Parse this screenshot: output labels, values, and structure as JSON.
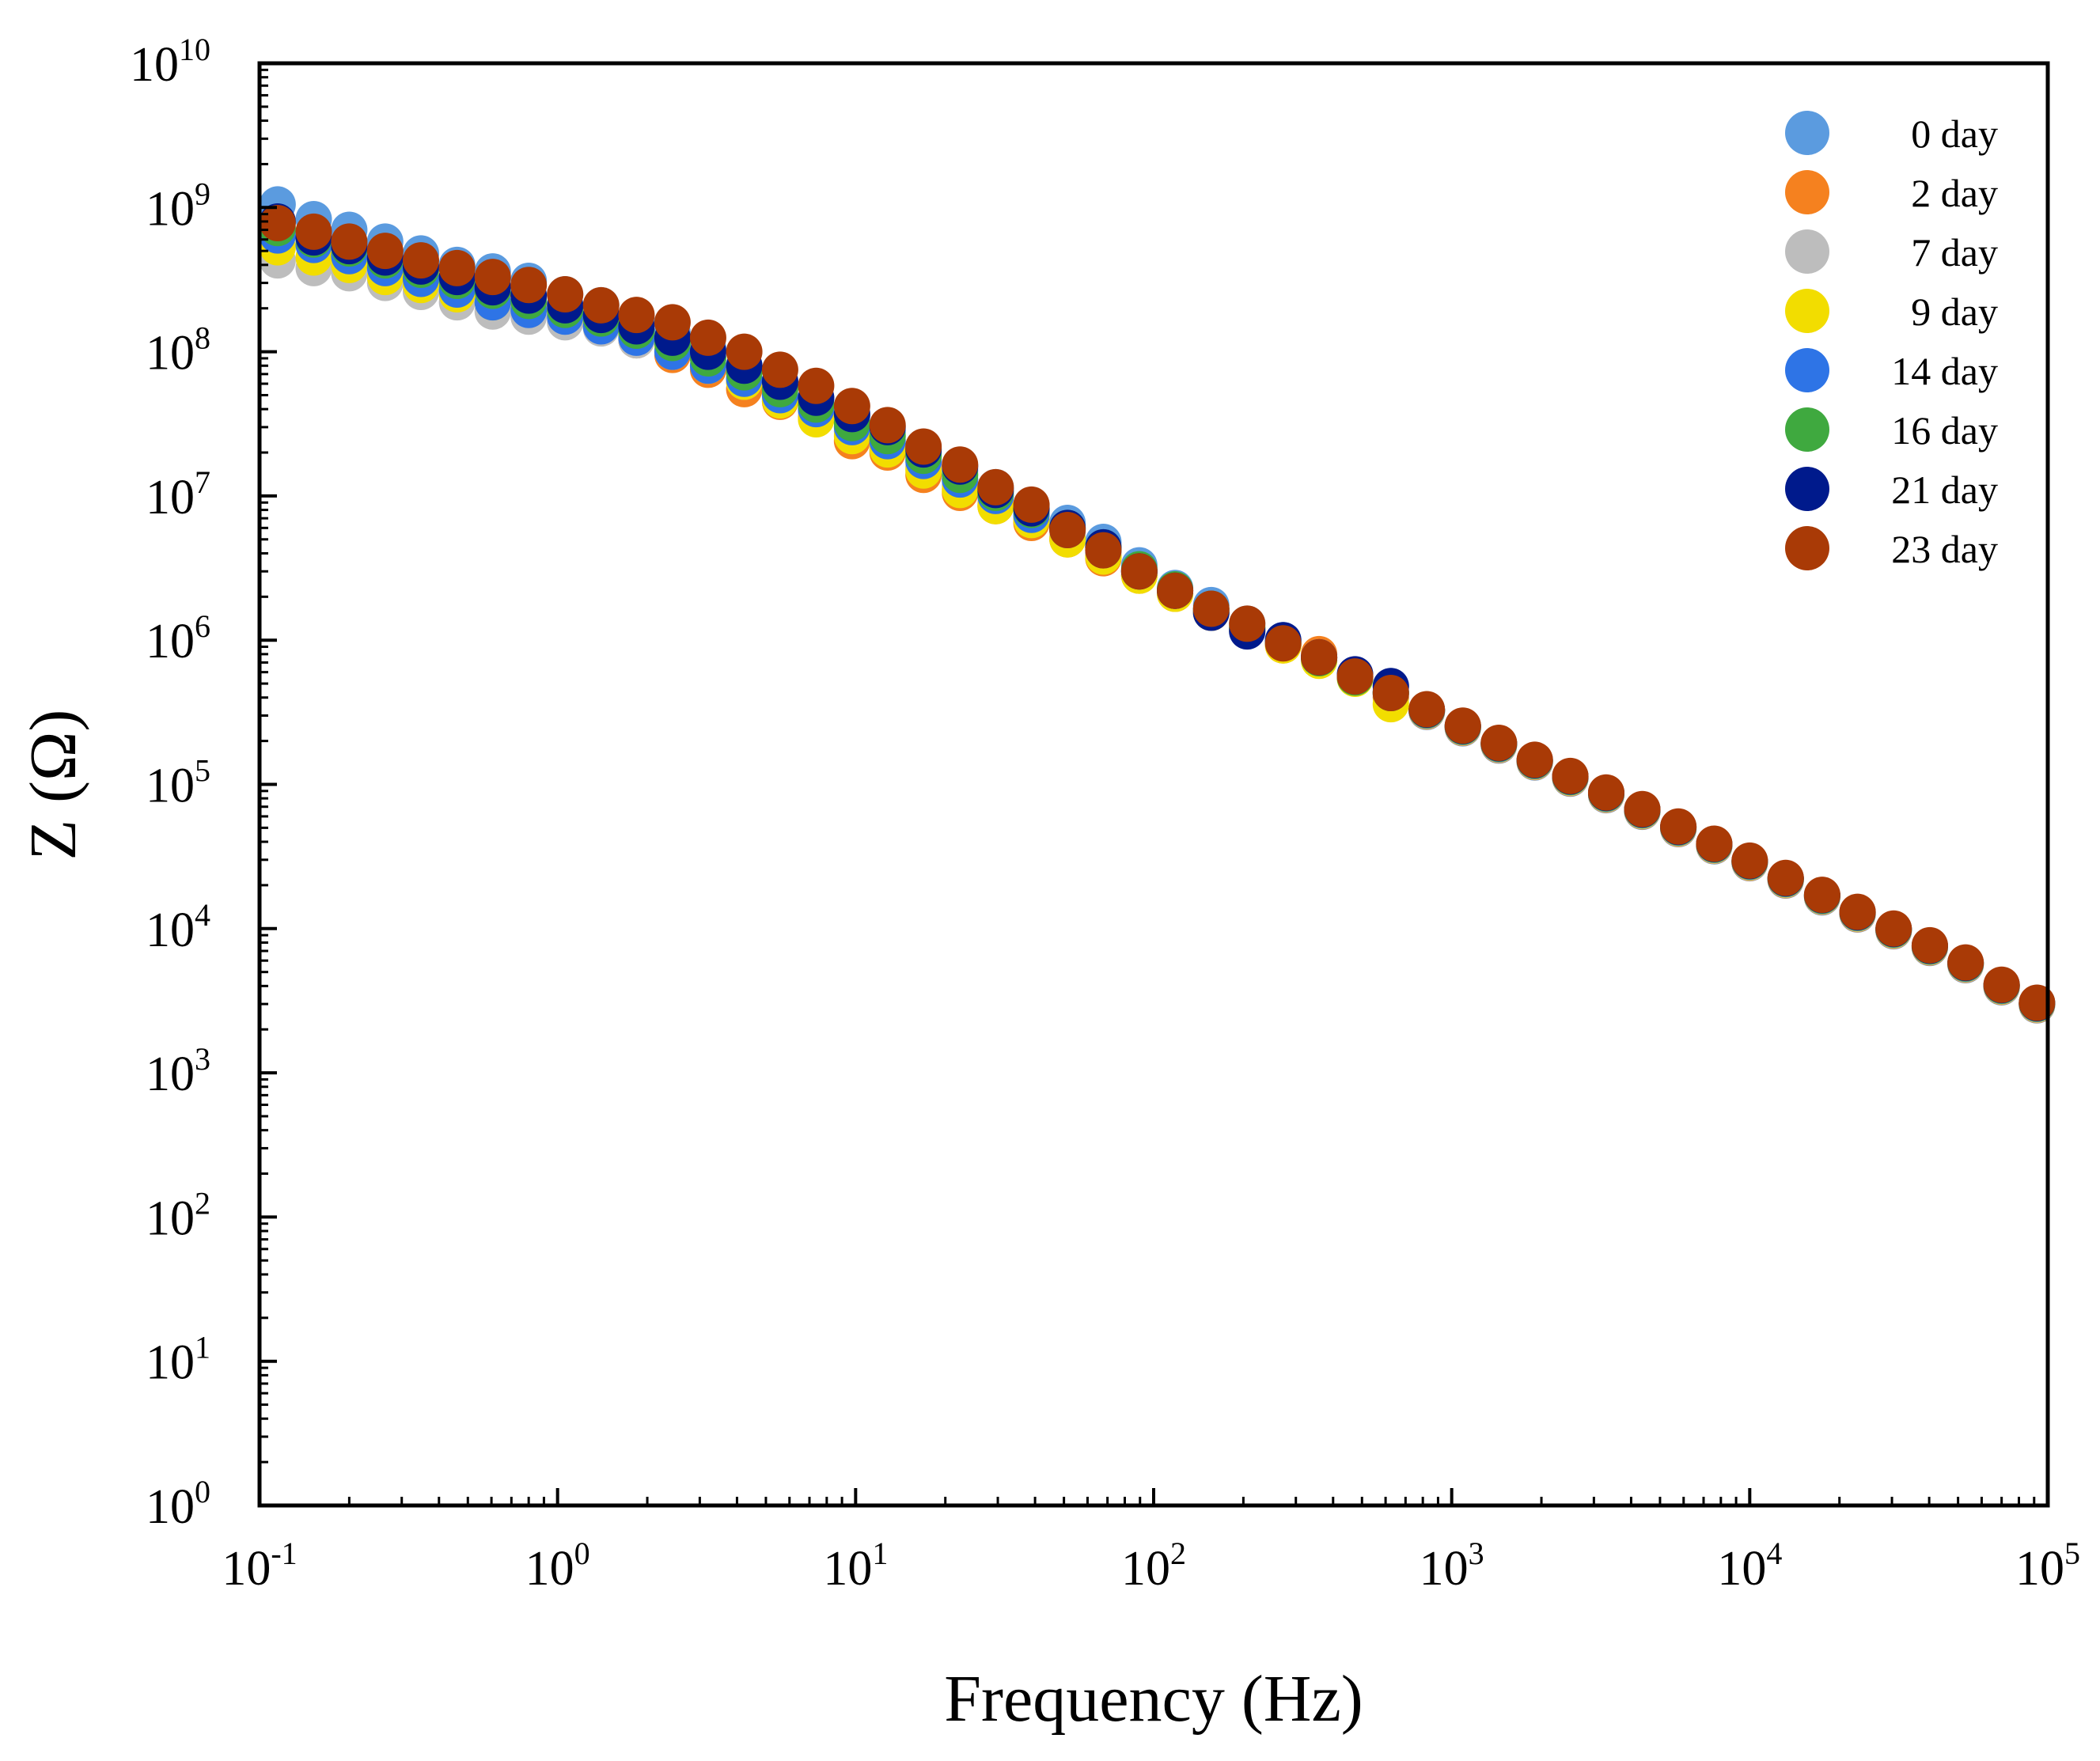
{
  "chart_data": {
    "type": "scatter",
    "title": "",
    "xlabel": "Frequency (Hz)",
    "ylabel": "Z (Ω)",
    "x_scale": "log",
    "y_scale": "log",
    "xlim": [
      0.1,
      100000
    ],
    "ylim": [
      1,
      10000000000
    ],
    "x_tick_exponents": [
      "-1",
      "0",
      "1",
      "2",
      "3",
      "4",
      "5"
    ],
    "y_tick_exponents": [
      "0",
      "1",
      "2",
      "3",
      "4",
      "5",
      "6",
      "7",
      "8",
      "9",
      "10"
    ],
    "tick_base": "10",
    "grid": false,
    "legend_position": "top-right",
    "x": [
      0.115,
      0.152,
      0.2,
      0.264,
      0.348,
      0.46,
      0.606,
      0.8,
      1.06,
      1.4,
      1.84,
      2.43,
      3.2,
      4.23,
      5.58,
      7.37,
      9.73,
      12.8,
      16.9,
      22.4,
      29.5,
      38.9,
      51.4,
      67.8,
      89.5,
      118,
      156,
      206,
      272,
      359,
      474,
      625
    ],
    "x_hf": [
      825,
      1090,
      1440,
      1900,
      2500,
      3300,
      4360,
      5760,
      7600,
      10000,
      13200,
      17500,
      23000,
      30400,
      40200,
      53000,
      70000,
      92000
    ],
    "y_hf": [
      325000,
      250000,
      190000,
      145000,
      112000,
      86000,
      66000,
      50000,
      38000,
      29000,
      22000,
      16800,
      12800,
      9800,
      7500,
      5700,
      4000,
      3000
    ],
    "series": [
      {
        "name": "0 day",
        "color": "#5b9bdf",
        "values": [
          1050000000,
          830000000,
          700000000,
          580000000,
          480000000,
          400000000,
          360000000,
          310000000,
          250000000,
          210000000,
          170000000,
          135000000,
          105000000,
          80000000,
          62000000,
          47000000,
          36000000,
          28000000,
          20000000,
          15000000,
          11500000,
          8500000,
          6500000,
          4800000,
          3300000,
          2300000,
          1750000,
          1300000,
          1000000,
          760000,
          570000,
          440000
        ]
      },
      {
        "name": "2 day",
        "color": "#f5811f",
        "values": [
          700000000,
          580000000,
          480000000,
          400000000,
          340000000,
          290000000,
          250000000,
          220000000,
          190000000,
          150000000,
          120000000,
          95000000,
          75000000,
          55000000,
          45000000,
          35000000,
          24000000,
          20000000,
          14000000,
          10500000,
          8500000,
          6500000,
          5000000,
          3700000,
          2800000,
          2100000,
          1550000,
          1180000,
          920000,
          800000,
          560000,
          400000
        ]
      },
      {
        "name": "7 day",
        "color": "#bdbdbd",
        "values": [
          430000000,
          380000000,
          350000000,
          300000000,
          260000000,
          220000000,
          190000000,
          175000000,
          160000000,
          145000000,
          120000000,
          100000000,
          80000000,
          62000000,
          48000000,
          38000000,
          28000000,
          22000000,
          16000000,
          12000000,
          9000000,
          7000000,
          5200000,
          4000000,
          2900000,
          2200000,
          1600000,
          1200000,
          950000,
          750000,
          560000,
          480000
        ]
      },
      {
        "name": "9 day",
        "color": "#f2dd00",
        "values": [
          530000000,
          450000000,
          400000000,
          330000000,
          290000000,
          250000000,
          220000000,
          200000000,
          180000000,
          160000000,
          130000000,
          105000000,
          80000000,
          62000000,
          46000000,
          34000000,
          26000000,
          21000000,
          15000000,
          11000000,
          8500000,
          6800000,
          5000000,
          3800000,
          2800000,
          2100000,
          1550000,
          1180000,
          920000,
          720000,
          540000,
          360000
        ]
      },
      {
        "name": "14 day",
        "color": "#2e74e6",
        "values": [
          640000000,
          550000000,
          460000000,
          380000000,
          320000000,
          270000000,
          220000000,
          195000000,
          175000000,
          150000000,
          125000000,
          100000000,
          80000000,
          65000000,
          50000000,
          40000000,
          30000000,
          24000000,
          17500000,
          13000000,
          10000000,
          7400000,
          5800000,
          4200000,
          3000000,
          2200000,
          1650000,
          1200000,
          980000,
          760000,
          560000,
          430000
        ]
      },
      {
        "name": "16 day",
        "color": "#3fa93f",
        "values": [
          720000000,
          600000000,
          520000000,
          430000000,
          370000000,
          310000000,
          265000000,
          225000000,
          195000000,
          170000000,
          140000000,
          115000000,
          90000000,
          72000000,
          55000000,
          43000000,
          32000000,
          26000000,
          19000000,
          14000000,
          10500000,
          8000000,
          6000000,
          4400000,
          3100000,
          2250000,
          1650000,
          1230000,
          960000,
          750000,
          550000,
          430000
        ]
      },
      {
        "name": "21 day",
        "color": "#001a8c",
        "values": [
          800000000,
          620000000,
          540000000,
          450000000,
          390000000,
          330000000,
          280000000,
          245000000,
          210000000,
          180000000,
          150000000,
          125000000,
          100000000,
          80000000,
          62000000,
          48000000,
          37000000,
          30000000,
          21000000,
          16000000,
          11000000,
          8200000,
          6000000,
          4400000,
          3000000,
          2200000,
          1550000,
          1150000,
          1000000,
          760000,
          580000,
          480000
        ]
      },
      {
        "name": "23 day",
        "color": "#a93a06",
        "values": [
          780000000,
          680000000,
          580000000,
          500000000,
          430000000,
          380000000,
          330000000,
          290000000,
          250000000,
          210000000,
          180000000,
          160000000,
          125000000,
          100000000,
          75000000,
          58000000,
          42000000,
          31000000,
          22000000,
          16500000,
          11500000,
          8700000,
          5800000,
          4200000,
          3000000,
          2200000,
          1650000,
          1300000,
          950000,
          760000,
          560000,
          430000
        ]
      }
    ]
  }
}
